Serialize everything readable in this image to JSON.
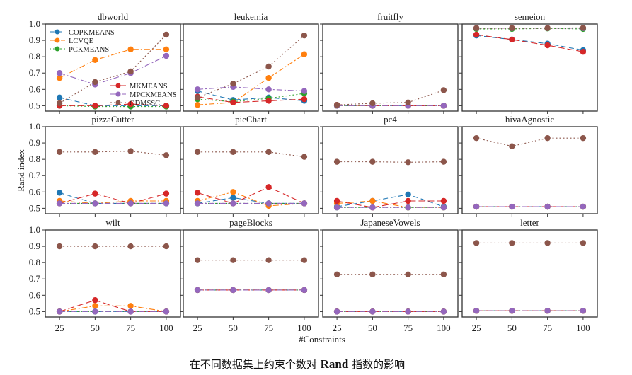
{
  "chart_data": {
    "type": "line",
    "ylabel": "Rand index",
    "xlabel": "#Constraints",
    "x": [
      25,
      50,
      75,
      100
    ],
    "xticks": [
      "25",
      "50",
      "75",
      "100"
    ],
    "yticks": [
      "0.5",
      "0.6",
      "0.7",
      "0.8",
      "0.9",
      "1.0"
    ],
    "ylim": [
      0.467,
      1.0
    ],
    "xlim": [
      15,
      110
    ],
    "legend_location": "inside dbworld panel (upper-left and lower-center)",
    "series_styles": [
      {
        "name": "COPKMEANS",
        "color": "#1f77b4",
        "dash": "7,4"
      },
      {
        "name": "LCVQE",
        "color": "#ff7f0e",
        "dash": "8,3,2,3"
      },
      {
        "name": "PCKMEANS",
        "color": "#2ca02c",
        "dash": "2,3"
      },
      {
        "name": "MKMEANS",
        "color": "#d62728",
        "dash": "9,4"
      },
      {
        "name": "MPCKMEANS",
        "color": "#9467bd",
        "dash": "8,3,2,3"
      },
      {
        "name": "ODMSSC",
        "color": "#8c564b",
        "dash": "2,3"
      }
    ],
    "panels": [
      {
        "title": "dbworld",
        "series": [
          [
            0.55,
            0.5,
            0.5,
            0.5
          ],
          [
            0.67,
            0.78,
            0.845,
            0.845
          ],
          [
            0.5,
            0.495,
            0.495,
            0.495
          ],
          [
            0.5,
            0.5,
            0.51,
            0.5
          ],
          [
            0.7,
            0.63,
            0.7,
            0.805
          ],
          [
            0.515,
            0.645,
            0.71,
            0.935
          ]
        ]
      },
      {
        "title": "leukemia",
        "series": [
          [
            0.59,
            0.535,
            0.55,
            0.53
          ],
          [
            0.505,
            0.52,
            0.67,
            0.815
          ],
          [
            0.54,
            0.525,
            0.545,
            0.575
          ],
          [
            0.555,
            0.52,
            0.53,
            0.54
          ],
          [
            0.6,
            0.615,
            0.6,
            0.59
          ],
          [
            0.55,
            0.635,
            0.74,
            0.93
          ]
        ]
      },
      {
        "title": "fruitfly",
        "series": [
          [
            0.5,
            0.5,
            0.5,
            0.5
          ],
          [
            0.5,
            0.5,
            0.5,
            0.5
          ],
          [
            0.5,
            0.5,
            0.5,
            0.5
          ],
          [
            0.505,
            0.5,
            0.5,
            0.5
          ],
          [
            0.5,
            0.5,
            0.5,
            0.5
          ],
          [
            0.505,
            0.515,
            0.52,
            0.595
          ]
        ]
      },
      {
        "title": "semeion",
        "series": [
          [
            0.93,
            0.905,
            0.88,
            0.84
          ],
          [
            0.975,
            0.975,
            0.975,
            0.975
          ],
          [
            0.97,
            0.97,
            0.973,
            0.97
          ],
          [
            0.935,
            0.905,
            0.87,
            0.83
          ],
          [
            0.975,
            0.975,
            0.975,
            0.975
          ],
          [
            0.975,
            0.975,
            0.975,
            0.977
          ]
        ]
      },
      {
        "title": "pizzaCutter",
        "series": [
          [
            0.595,
            0.53,
            0.53,
            0.53
          ],
          [
            0.545,
            0.53,
            0.545,
            0.545
          ],
          [
            0.53,
            0.53,
            0.53,
            0.53
          ],
          [
            0.53,
            0.59,
            0.53,
            0.59
          ],
          [
            0.53,
            0.53,
            0.53,
            0.53
          ],
          [
            0.845,
            0.845,
            0.85,
            0.825
          ]
        ]
      },
      {
        "title": "pieChart",
        "series": [
          [
            0.53,
            0.565,
            0.53,
            0.53
          ],
          [
            0.545,
            0.6,
            0.515,
            0.53
          ],
          [
            0.53,
            0.53,
            0.53,
            0.53
          ],
          [
            0.595,
            0.53,
            0.63,
            0.53
          ],
          [
            0.53,
            0.53,
            0.53,
            0.53
          ],
          [
            0.845,
            0.845,
            0.845,
            0.815
          ]
        ]
      },
      {
        "title": "pc4",
        "series": [
          [
            0.51,
            0.545,
            0.585,
            0.51
          ],
          [
            0.53,
            0.545,
            0.505,
            0.505
          ],
          [
            0.505,
            0.505,
            0.505,
            0.505
          ],
          [
            0.545,
            0.505,
            0.545,
            0.545
          ],
          [
            0.505,
            0.505,
            0.505,
            0.505
          ],
          [
            0.785,
            0.785,
            0.782,
            0.785
          ]
        ]
      },
      {
        "title": "hivaAgnostic",
        "series": [
          [
            0.51,
            0.51,
            0.51,
            0.51
          ],
          [
            0.51,
            0.51,
            0.51,
            0.51
          ],
          [
            0.51,
            0.51,
            0.51,
            0.51
          ],
          [
            0.51,
            0.51,
            0.51,
            0.51
          ],
          [
            0.51,
            0.51,
            0.51,
            0.51
          ],
          [
            0.93,
            0.88,
            0.93,
            0.93
          ]
        ]
      },
      {
        "title": "wilt",
        "series": [
          [
            0.5,
            0.5,
            0.5,
            0.5
          ],
          [
            0.5,
            0.535,
            0.535,
            0.5
          ],
          [
            0.5,
            0.5,
            0.5,
            0.5
          ],
          [
            0.5,
            0.57,
            0.5,
            0.5
          ],
          [
            0.5,
            0.5,
            0.5,
            0.5
          ],
          [
            0.9,
            0.9,
            0.9,
            0.9
          ]
        ]
      },
      {
        "title": "pageBlocks",
        "series": [
          [
            0.632,
            0.632,
            0.632,
            0.632
          ],
          [
            0.632,
            0.632,
            0.632,
            0.632
          ],
          [
            0.632,
            0.632,
            0.632,
            0.632
          ],
          [
            0.632,
            0.632,
            0.632,
            0.632
          ],
          [
            0.632,
            0.632,
            0.632,
            0.632
          ],
          [
            0.815,
            0.815,
            0.815,
            0.815
          ]
        ]
      },
      {
        "title": "JapaneseVowels",
        "series": [
          [
            0.5,
            0.5,
            0.5,
            0.5
          ],
          [
            0.5,
            0.5,
            0.5,
            0.5
          ],
          [
            0.5,
            0.5,
            0.5,
            0.5
          ],
          [
            0.5,
            0.5,
            0.5,
            0.5
          ],
          [
            0.5,
            0.5,
            0.5,
            0.5
          ],
          [
            0.728,
            0.728,
            0.728,
            0.728
          ]
        ]
      },
      {
        "title": "letter",
        "series": [
          [
            0.505,
            0.505,
            0.505,
            0.505
          ],
          [
            0.505,
            0.505,
            0.505,
            0.505
          ],
          [
            0.505,
            0.505,
            0.505,
            0.505
          ],
          [
            0.505,
            0.505,
            0.505,
            0.505
          ],
          [
            0.505,
            0.505,
            0.505,
            0.505
          ],
          [
            0.92,
            0.92,
            0.92,
            0.92
          ]
        ]
      }
    ]
  },
  "caption": {
    "prefix": "在不同数据集上约束个数对 ",
    "bold": "Rand",
    "suffix": " 指数的影响"
  }
}
